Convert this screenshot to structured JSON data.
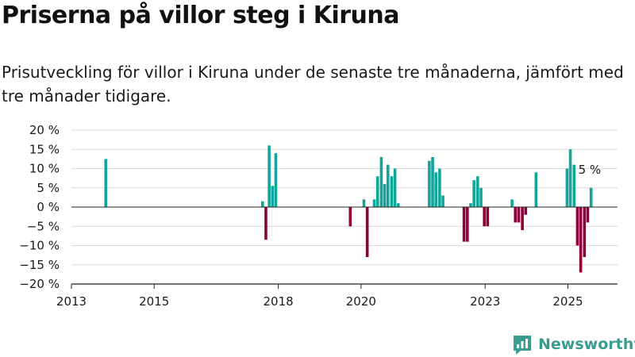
{
  "title": "Priserna på villor steg i Kiruna",
  "subtitle": "Prisutveckling för villor i Kiruna under de senaste tre månaderna, jämfört med tre månader tidigare.",
  "brand": "Newsworthy",
  "colors": {
    "positive": "#12a69a",
    "negative": "#8e0038",
    "brand": "#3a9b8f"
  },
  "chart_data": {
    "type": "bar",
    "title": "",
    "xlabel": "",
    "ylabel": "",
    "ylim": [
      -20,
      20
    ],
    "xlim": [
      2013.0,
      2026.2
    ],
    "yticks": [
      20,
      15,
      10,
      5,
      0,
      -5,
      -10,
      -15,
      -20
    ],
    "ytick_labels": [
      "20 %",
      "15 %",
      "10 %",
      "5 %",
      "0 %",
      "−5 %",
      "−10 %",
      "−15 %",
      "−20 %"
    ],
    "xticks": [
      2013,
      2015,
      2018,
      2020,
      2023,
      2025
    ],
    "xtick_labels": [
      "2013",
      "2015",
      "2018",
      "2020",
      "2023",
      "2025"
    ],
    "grid": true,
    "annotation": "5 %",
    "x": [
      2013.83,
      2017.62,
      2017.7,
      2017.78,
      2017.86,
      2017.94,
      2019.74,
      2020.07,
      2020.15,
      2020.32,
      2020.4,
      2020.49,
      2020.57,
      2020.65,
      2020.74,
      2020.82,
      2020.9,
      2021.65,
      2021.73,
      2021.81,
      2021.9,
      2021.98,
      2022.49,
      2022.57,
      2022.65,
      2022.73,
      2022.82,
      2022.9,
      2022.98,
      2023.06,
      2023.65,
      2023.73,
      2023.81,
      2023.9,
      2023.98,
      2024.23,
      2024.98,
      2025.06,
      2025.15,
      2025.23,
      2025.31,
      2025.4,
      2025.48,
      2025.56
    ],
    "values": [
      12.5,
      1.5,
      -8.5,
      16,
      5.5,
      14,
      -5,
      2,
      -13,
      2,
      8,
      13,
      6,
      11,
      8,
      10,
      1,
      12,
      13,
      9,
      10,
      3,
      -9,
      -9,
      1,
      7,
      8,
      5,
      -5,
      -5,
      2,
      -4,
      -4,
      -6,
      -2,
      9,
      10,
      15,
      11,
      -10,
      -17,
      -13,
      -4,
      5
    ]
  }
}
